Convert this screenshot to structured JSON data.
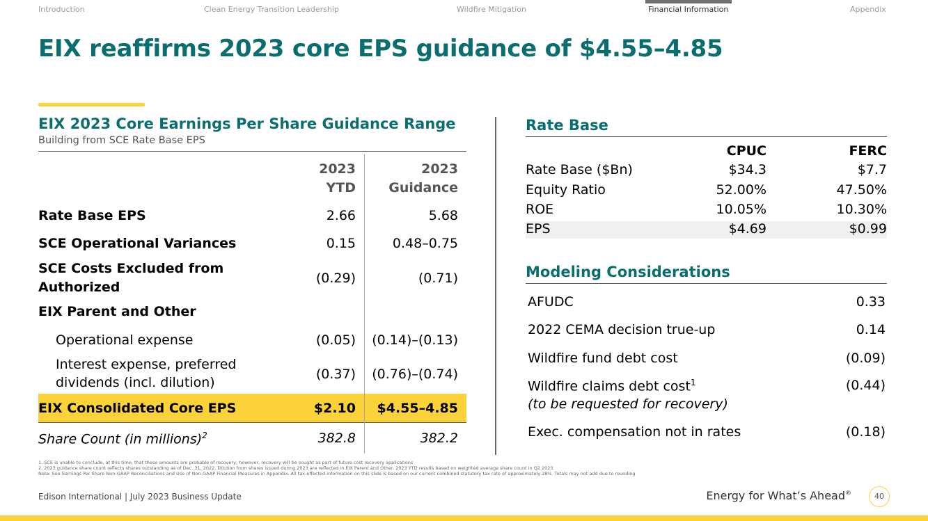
{
  "nav": {
    "items": [
      "Introduction",
      "Clean Energy Transition Leadership",
      "Wildfire Mitigation",
      "Financial Information",
      "Appendix"
    ],
    "active": "Financial Information"
  },
  "title": "EIX reaffirms 2023 core EPS guidance of $4.55–4.85",
  "left": {
    "heading": "EIX 2023 Core Earnings Per Share Guidance Range",
    "subheading": "Building from SCE Rate Base EPS",
    "col_ytd": [
      "2023",
      "YTD"
    ],
    "col_guidance": [
      "2023",
      "Guidance"
    ],
    "rows": [
      {
        "label": "Rate Base EPS",
        "ytd": "2.66",
        "guidance": "5.68"
      },
      {
        "label": "SCE Operational Variances",
        "ytd": "0.15",
        "guidance": "0.48–0.75"
      },
      {
        "label_lines": [
          "SCE Costs Excluded from",
          "Authorized"
        ],
        "ytd": "(0.29)",
        "guidance": "(0.71)"
      },
      {
        "label": "EIX Parent and Other"
      },
      {
        "label": "Operational expense",
        "ytd": "(0.05)",
        "guidance": "(0.14)–(0.13)"
      },
      {
        "label_lines": [
          "Interest expense, preferred",
          "dividends (incl. dilution)"
        ],
        "ytd": "(0.37)",
        "guidance": "(0.76)–(0.74)"
      },
      {
        "label": "EIX Consolidated Core EPS",
        "ytd": "$2.10",
        "guidance": "$4.55–4.85"
      },
      {
        "label": "Share Count (in millions)",
        "label_sup": "2",
        "ytd": "382.8",
        "guidance": "382.2"
      }
    ]
  },
  "rate_base": {
    "heading": "Rate Base",
    "col_cpuc": "CPUC",
    "col_ferc": "FERC",
    "rows": [
      {
        "label": "Rate Base ($Bn)",
        "cpuc": "$34.3",
        "ferc": "$7.7"
      },
      {
        "label": "Equity Ratio",
        "cpuc": "52.00%",
        "ferc": "47.50%"
      },
      {
        "label": "ROE",
        "cpuc": "10.05%",
        "ferc": "10.30%"
      },
      {
        "label": "EPS",
        "cpuc": "$4.69",
        "ferc": "$0.99"
      }
    ]
  },
  "modeling": {
    "heading": "Modeling Considerations",
    "rows": [
      {
        "label": "AFUDC",
        "value": "0.33"
      },
      {
        "label": "2022 CEMA decision true-up",
        "value": "0.14"
      },
      {
        "label": "Wildfire fund debt cost",
        "value": "(0.09)"
      },
      {
        "label": "Wildfire claims debt cost",
        "label_sup": "1",
        "sublabel": "(to be requested for recovery)",
        "value": "(0.44)"
      },
      {
        "label": "Exec. compensation not in rates",
        "value": "(0.18)"
      }
    ]
  },
  "footnotes": [
    "1.   SCE is unable to conclude, at this time, that these amounts are probable of recovery; however, recovery will be sought as part of future cost recovery applications",
    "2.   2023 guidance share count reflects shares outstanding as of Dec. 31, 2022. Dilution from shares issued during 2023 are reflected in EIX Parent and Other. 2023 YTD results based on weighted average share count in Q2 2023",
    "Note: See Earnings Per Share Non-GAAP Reconciliations and Use of Non-GAAP Financial Measures in Appendix. All tax-effected information on this slide is based on our current combined statutory tax rate of approximately 28%. Totals may not add due to rounding"
  ],
  "footer": {
    "left": "Edison International | July 2023 Business Update",
    "tagline": "Energy for What’s Ahead",
    "tagline_mark": "®",
    "page": "40"
  },
  "colors": {
    "teal": "#0b6e6e",
    "gold": "#fcd23a",
    "gray": "#707070"
  }
}
